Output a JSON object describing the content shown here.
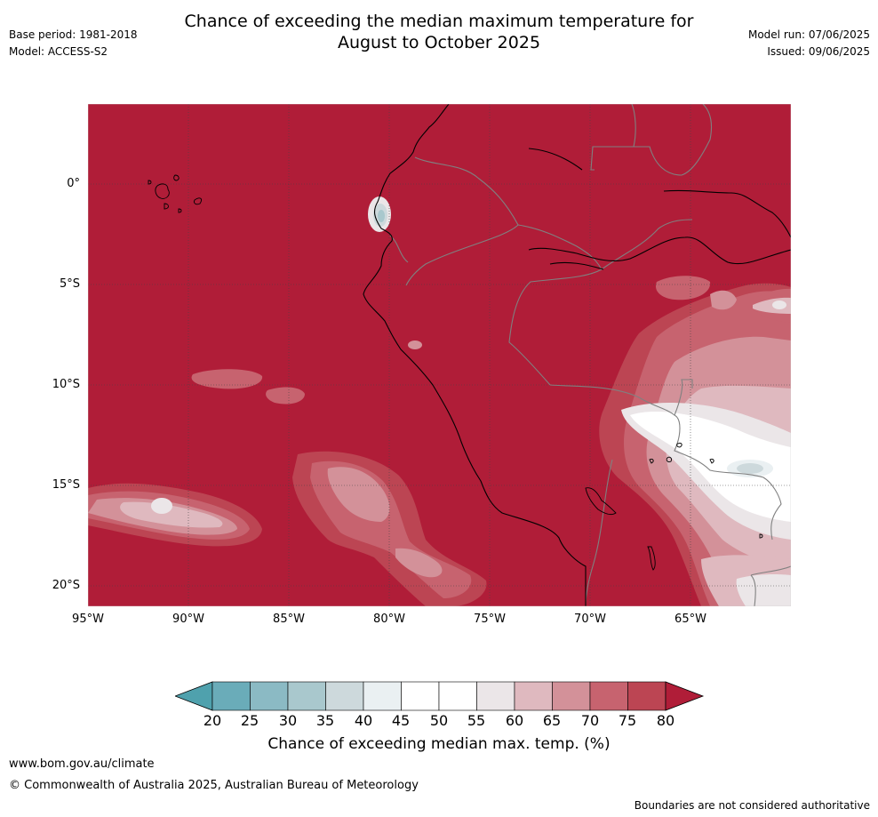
{
  "title": {
    "line1": "Chance of exceeding the median maximum temperature for",
    "line2": "August to October 2025"
  },
  "meta": {
    "base_period": "Base period: 1981-2018",
    "model": "Model: ACCESS-S2",
    "model_run": "Model run: 07/06/2025",
    "issued": "Issued: 09/06/2025"
  },
  "axes": {
    "lat_ticks": [
      "0°",
      "5°S",
      "10°S",
      "15°S",
      "20°S"
    ],
    "lon_ticks": [
      "95°W",
      "90°W",
      "85°W",
      "80°W",
      "75°W",
      "70°W",
      "65°W"
    ]
  },
  "colorbar": {
    "labels": [
      "20",
      "25",
      "30",
      "35",
      "40",
      "45",
      "50",
      "55",
      "60",
      "65",
      "70",
      "75",
      "80"
    ],
    "colors": [
      "#4fa1ad",
      "#6aacb9",
      "#8bbac4",
      "#a9c8cd",
      "#cdd9dc",
      "#eaf0f2",
      "#ffffff",
      "#ffffff",
      "#ebe6e8",
      "#dfb9bf",
      "#d39199",
      "#c7636f",
      "#bc4553",
      "#b01d38"
    ],
    "title": "Chance of exceeding median max. temp. (%)"
  },
  "map_colors": {
    "dominant": "#b01d38",
    "band75": "#bc4553",
    "band70": "#c7636f",
    "band65": "#d39199",
    "band60": "#dfb9bf",
    "band55": "#ebe6e8",
    "band45": "#eaf0f2",
    "band40": "#cdd9dc",
    "coast": "#000000",
    "border": "#808080",
    "grid": "#333333"
  },
  "footer": {
    "url": "www.bom.gov.au/climate",
    "copyright": "© Commonwealth of Australia 2025, Australian Bureau of Meteorology",
    "boundaries": "Boundaries are not considered authoritative"
  }
}
